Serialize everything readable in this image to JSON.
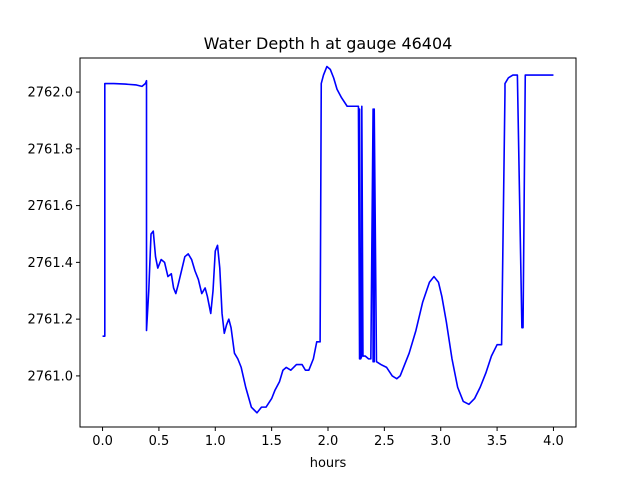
{
  "chart_data": {
    "type": "line",
    "title": "Water Depth h at gauge 46404",
    "xlabel": "hours",
    "ylabel": "",
    "xlim": [
      -0.2,
      4.2
    ],
    "ylim": [
      2760.82,
      2762.12
    ],
    "xticks": [
      0.0,
      0.5,
      1.0,
      1.5,
      2.0,
      2.5,
      3.0,
      3.5,
      4.0
    ],
    "xtick_labels": [
      "0.0",
      "0.5",
      "1.0",
      "1.5",
      "2.0",
      "2.5",
      "3.0",
      "3.5",
      "4.0"
    ],
    "yticks": [
      2761.0,
      2761.2,
      2761.4,
      2761.6,
      2761.8,
      2762.0
    ],
    "ytick_labels": [
      "2761.0",
      "2761.2",
      "2761.4",
      "2761.6",
      "2761.8",
      "2762.0"
    ],
    "grid": false,
    "series": [
      {
        "color": "#0000ff",
        "x": [
          0.0,
          0.02,
          0.02,
          0.1,
          0.2,
          0.3,
          0.35,
          0.38,
          0.39,
          0.39,
          0.41,
          0.43,
          0.45,
          0.47,
          0.49,
          0.52,
          0.55,
          0.58,
          0.61,
          0.63,
          0.65,
          0.67,
          0.7,
          0.73,
          0.76,
          0.79,
          0.82,
          0.85,
          0.88,
          0.91,
          0.93,
          0.96,
          0.98,
          1.0,
          1.02,
          1.04,
          1.06,
          1.08,
          1.1,
          1.12,
          1.14,
          1.17,
          1.2,
          1.23,
          1.27,
          1.32,
          1.37,
          1.41,
          1.45,
          1.5,
          1.53,
          1.57,
          1.6,
          1.63,
          1.67,
          1.72,
          1.77,
          1.8,
          1.83,
          1.87,
          1.9,
          1.93,
          1.94,
          1.94,
          1.96,
          1.99,
          2.02,
          2.05,
          2.08,
          2.12,
          2.17,
          2.22,
          2.27,
          2.28,
          2.28,
          2.29,
          2.3,
          2.3,
          2.31,
          2.32,
          2.33,
          2.36,
          2.38,
          2.4,
          2.4,
          2.41,
          2.41,
          2.43,
          2.47,
          2.52,
          2.57,
          2.61,
          2.64,
          2.68,
          2.72,
          2.78,
          2.84,
          2.9,
          2.94,
          2.98,
          3.01,
          3.05,
          3.1,
          3.15,
          3.2,
          3.25,
          3.3,
          3.35,
          3.4,
          3.45,
          3.5,
          3.54,
          3.57,
          3.57,
          3.6,
          3.64,
          3.68,
          3.72,
          3.73,
          3.73,
          3.75,
          3.75,
          3.76,
          3.76,
          3.8,
          3.85,
          3.9,
          3.95,
          4.0
        ],
        "y": [
          2761.14,
          2761.14,
          2762.03,
          2762.03,
          2762.028,
          2762.025,
          2762.02,
          2762.03,
          2762.04,
          2761.16,
          2761.3,
          2761.5,
          2761.51,
          2761.42,
          2761.38,
          2761.41,
          2761.4,
          2761.35,
          2761.36,
          2761.31,
          2761.29,
          2761.32,
          2761.37,
          2761.42,
          2761.43,
          2761.41,
          2761.37,
          2761.34,
          2761.29,
          2761.31,
          2761.28,
          2761.22,
          2761.3,
          2761.44,
          2761.46,
          2761.38,
          2761.22,
          2761.15,
          2761.18,
          2761.2,
          2761.17,
          2761.08,
          2761.06,
          2761.03,
          2760.96,
          2760.89,
          2760.87,
          2760.89,
          2760.89,
          2760.92,
          2760.95,
          2760.98,
          2761.02,
          2761.03,
          2761.02,
          2761.04,
          2761.04,
          2761.02,
          2761.02,
          2761.06,
          2761.12,
          2761.12,
          2762.02,
          2762.03,
          2762.06,
          2762.09,
          2762.08,
          2762.05,
          2762.01,
          2761.98,
          2761.95,
          2761.95,
          2761.95,
          2761.06,
          2761.94,
          2761.06,
          2761.07,
          2761.95,
          2761.07,
          2761.07,
          2761.07,
          2761.06,
          2761.06,
          2761.94,
          2761.05,
          2761.05,
          2761.94,
          2761.05,
          2761.04,
          2761.03,
          2761.0,
          2760.99,
          2761.0,
          2761.04,
          2761.08,
          2761.16,
          2761.26,
          2761.33,
          2761.35,
          2761.33,
          2761.28,
          2761.19,
          2761.06,
          2760.96,
          2760.91,
          2760.9,
          2760.92,
          2760.96,
          2761.01,
          2761.07,
          2761.11,
          2761.11,
          2762.0,
          2762.03,
          2762.05,
          2762.06,
          2762.06,
          2761.17,
          2761.17,
          2761.17,
          2762.06,
          2762.06,
          2762.06,
          2762.06,
          2762.06,
          2762.06,
          2762.06,
          2762.06,
          2762.06
        ]
      }
    ]
  }
}
